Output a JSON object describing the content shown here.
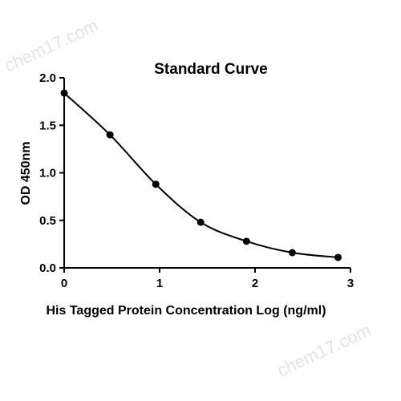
{
  "watermark": {
    "top_text": "chem17.com",
    "bottom_text": "chem17.com"
  },
  "chart_data": {
    "type": "scatter",
    "title": "Standard Curve",
    "xlabel": "His Tagged Protein Concentration Log (ng/ml)",
    "ylabel": "OD 450nm",
    "xlim": [
      0,
      3
    ],
    "ylim": [
      0,
      2.0
    ],
    "x_ticks": [
      0,
      1,
      2,
      3
    ],
    "x_tick_labels": [
      "0",
      "1",
      "2",
      "3"
    ],
    "y_ticks": [
      0,
      0.5,
      1.0,
      1.5,
      2.0
    ],
    "y_tick_labels": [
      "0.0",
      "0.5",
      "1.0",
      "1.5",
      "2.0"
    ],
    "grid": false,
    "series": [
      {
        "x": [
          0,
          0.48,
          0.96,
          1.43,
          1.91,
          2.39,
          2.87
        ],
        "y": [
          1.84,
          1.4,
          0.88,
          0.48,
          0.28,
          0.16,
          0.11
        ],
        "fit_curve": true
      }
    ],
    "colors": {
      "points": "#000000",
      "curve": "#000000",
      "axes": "#000000"
    }
  }
}
